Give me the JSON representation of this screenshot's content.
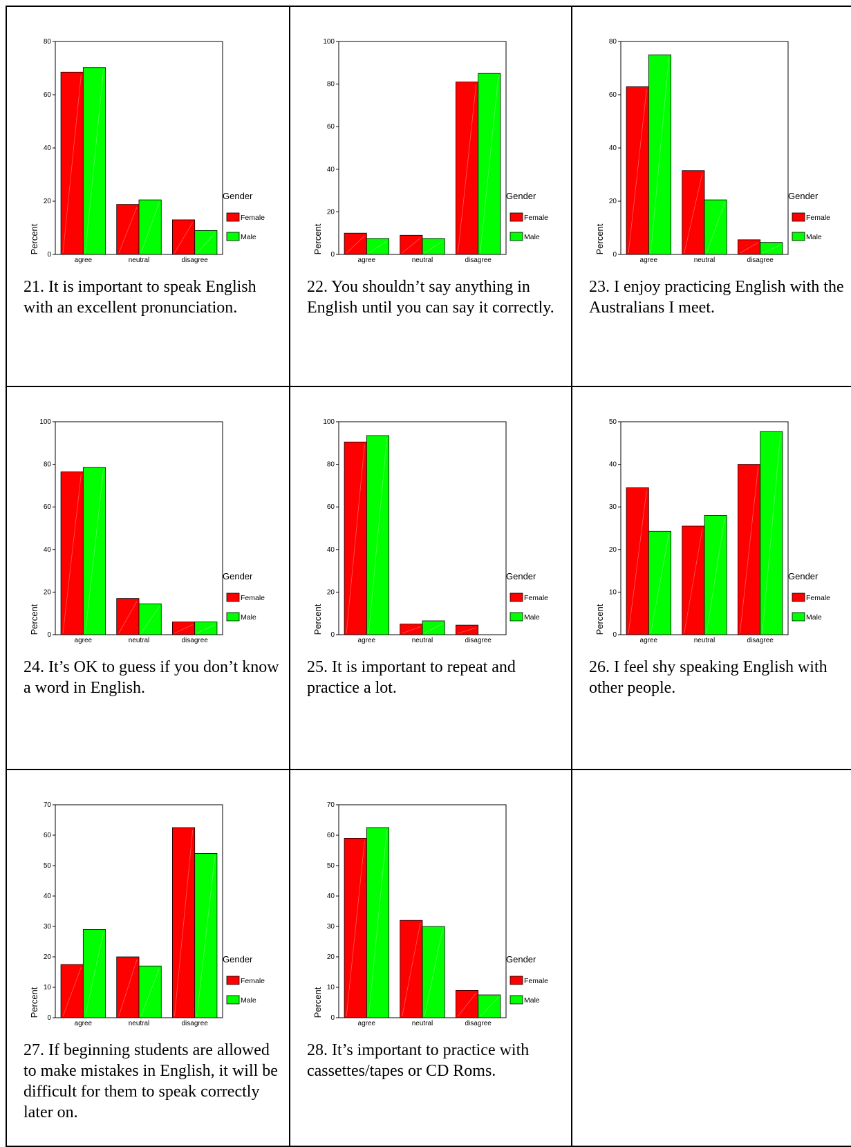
{
  "legend": {
    "title": "Gender",
    "items": [
      {
        "label": "Female",
        "color": "#ff0000"
      },
      {
        "label": "Male",
        "color": "#00ff00"
      }
    ]
  },
  "ylabel": "Percent",
  "chart_data": [
    {
      "type": "bar",
      "caption": "21. It is important to speak English with an excellent pronunciation.",
      "categories": [
        "agree",
        "neutral",
        "disagree"
      ],
      "ylim": [
        0,
        80
      ],
      "yticks": [
        0,
        20,
        40,
        60,
        80
      ],
      "series": [
        {
          "name": "Female",
          "values": [
            68.5,
            18.8,
            13
          ]
        },
        {
          "name": "Male",
          "values": [
            70.2,
            20.5,
            9
          ]
        }
      ]
    },
    {
      "type": "bar",
      "caption": "22. You shouldn’t say anything in English until you can say it correctly.",
      "categories": [
        "agree",
        "neutral",
        "disagree"
      ],
      "ylim": [
        0,
        100
      ],
      "yticks": [
        0,
        20,
        40,
        60,
        80,
        100
      ],
      "series": [
        {
          "name": "Female",
          "values": [
            10,
            9,
            81
          ]
        },
        {
          "name": "Male",
          "values": [
            7.5,
            7.5,
            85
          ]
        }
      ]
    },
    {
      "type": "bar",
      "caption": "23. I enjoy practicing English with the Australians I meet.",
      "categories": [
        "agree",
        "neutral",
        "disagree"
      ],
      "ylim": [
        0,
        80
      ],
      "yticks": [
        0,
        20,
        40,
        60,
        80
      ],
      "series": [
        {
          "name": "Female",
          "values": [
            63,
            31.5,
            5.5
          ]
        },
        {
          "name": "Male",
          "values": [
            75,
            20.5,
            4.5
          ]
        }
      ]
    },
    {
      "type": "bar",
      "caption": "24. It’s OK to guess if you don’t know a word in English.",
      "categories": [
        "agree",
        "neutral",
        "disagree"
      ],
      "ylim": [
        0,
        100
      ],
      "yticks": [
        0,
        20,
        40,
        60,
        80,
        100
      ],
      "series": [
        {
          "name": "Female",
          "values": [
            76.5,
            17,
            6
          ]
        },
        {
          "name": "Male",
          "values": [
            78.5,
            14.5,
            6
          ]
        }
      ]
    },
    {
      "type": "bar",
      "caption": "25. It is important to repeat and practice a lot.",
      "categories": [
        "agree",
        "neutral",
        "disagree"
      ],
      "ylim": [
        0,
        100
      ],
      "yticks": [
        0,
        20,
        40,
        60,
        80,
        100
      ],
      "series": [
        {
          "name": "Female",
          "values": [
            90.5,
            5,
            4.5
          ]
        },
        {
          "name": "Male",
          "values": [
            93.5,
            6.5,
            0
          ]
        }
      ]
    },
    {
      "type": "bar",
      "caption": "26. I feel shy speaking English with other people.",
      "categories": [
        "agree",
        "neutral",
        "disagree"
      ],
      "ylim": [
        0,
        50
      ],
      "yticks": [
        0,
        10,
        20,
        30,
        40,
        50
      ],
      "series": [
        {
          "name": "Female",
          "values": [
            34.5,
            25.5,
            40
          ]
        },
        {
          "name": "Male",
          "values": [
            24.3,
            28,
            47.7
          ]
        }
      ]
    },
    {
      "type": "bar",
      "caption": "27. If beginning students are allowed to make mistakes in English, it will be difficult for them to speak correctly later on.",
      "categories": [
        "agree",
        "neutral",
        "disagree"
      ],
      "ylim": [
        0,
        70
      ],
      "yticks": [
        0,
        10,
        20,
        30,
        40,
        50,
        60,
        70
      ],
      "series": [
        {
          "name": "Female",
          "values": [
            17.5,
            20,
            62.5
          ]
        },
        {
          "name": "Male",
          "values": [
            29,
            17,
            54
          ]
        }
      ]
    },
    {
      "type": "bar",
      "caption": "28. It’s important to practice with cassettes/tapes or CD Roms.",
      "categories": [
        "agree",
        "neutral",
        "disagree"
      ],
      "ylim": [
        0,
        70
      ],
      "yticks": [
        0,
        10,
        20,
        30,
        40,
        50,
        60,
        70
      ],
      "series": [
        {
          "name": "Female",
          "values": [
            59,
            32,
            9
          ]
        },
        {
          "name": "Male",
          "values": [
            62.5,
            30,
            7.5
          ]
        }
      ]
    }
  ]
}
